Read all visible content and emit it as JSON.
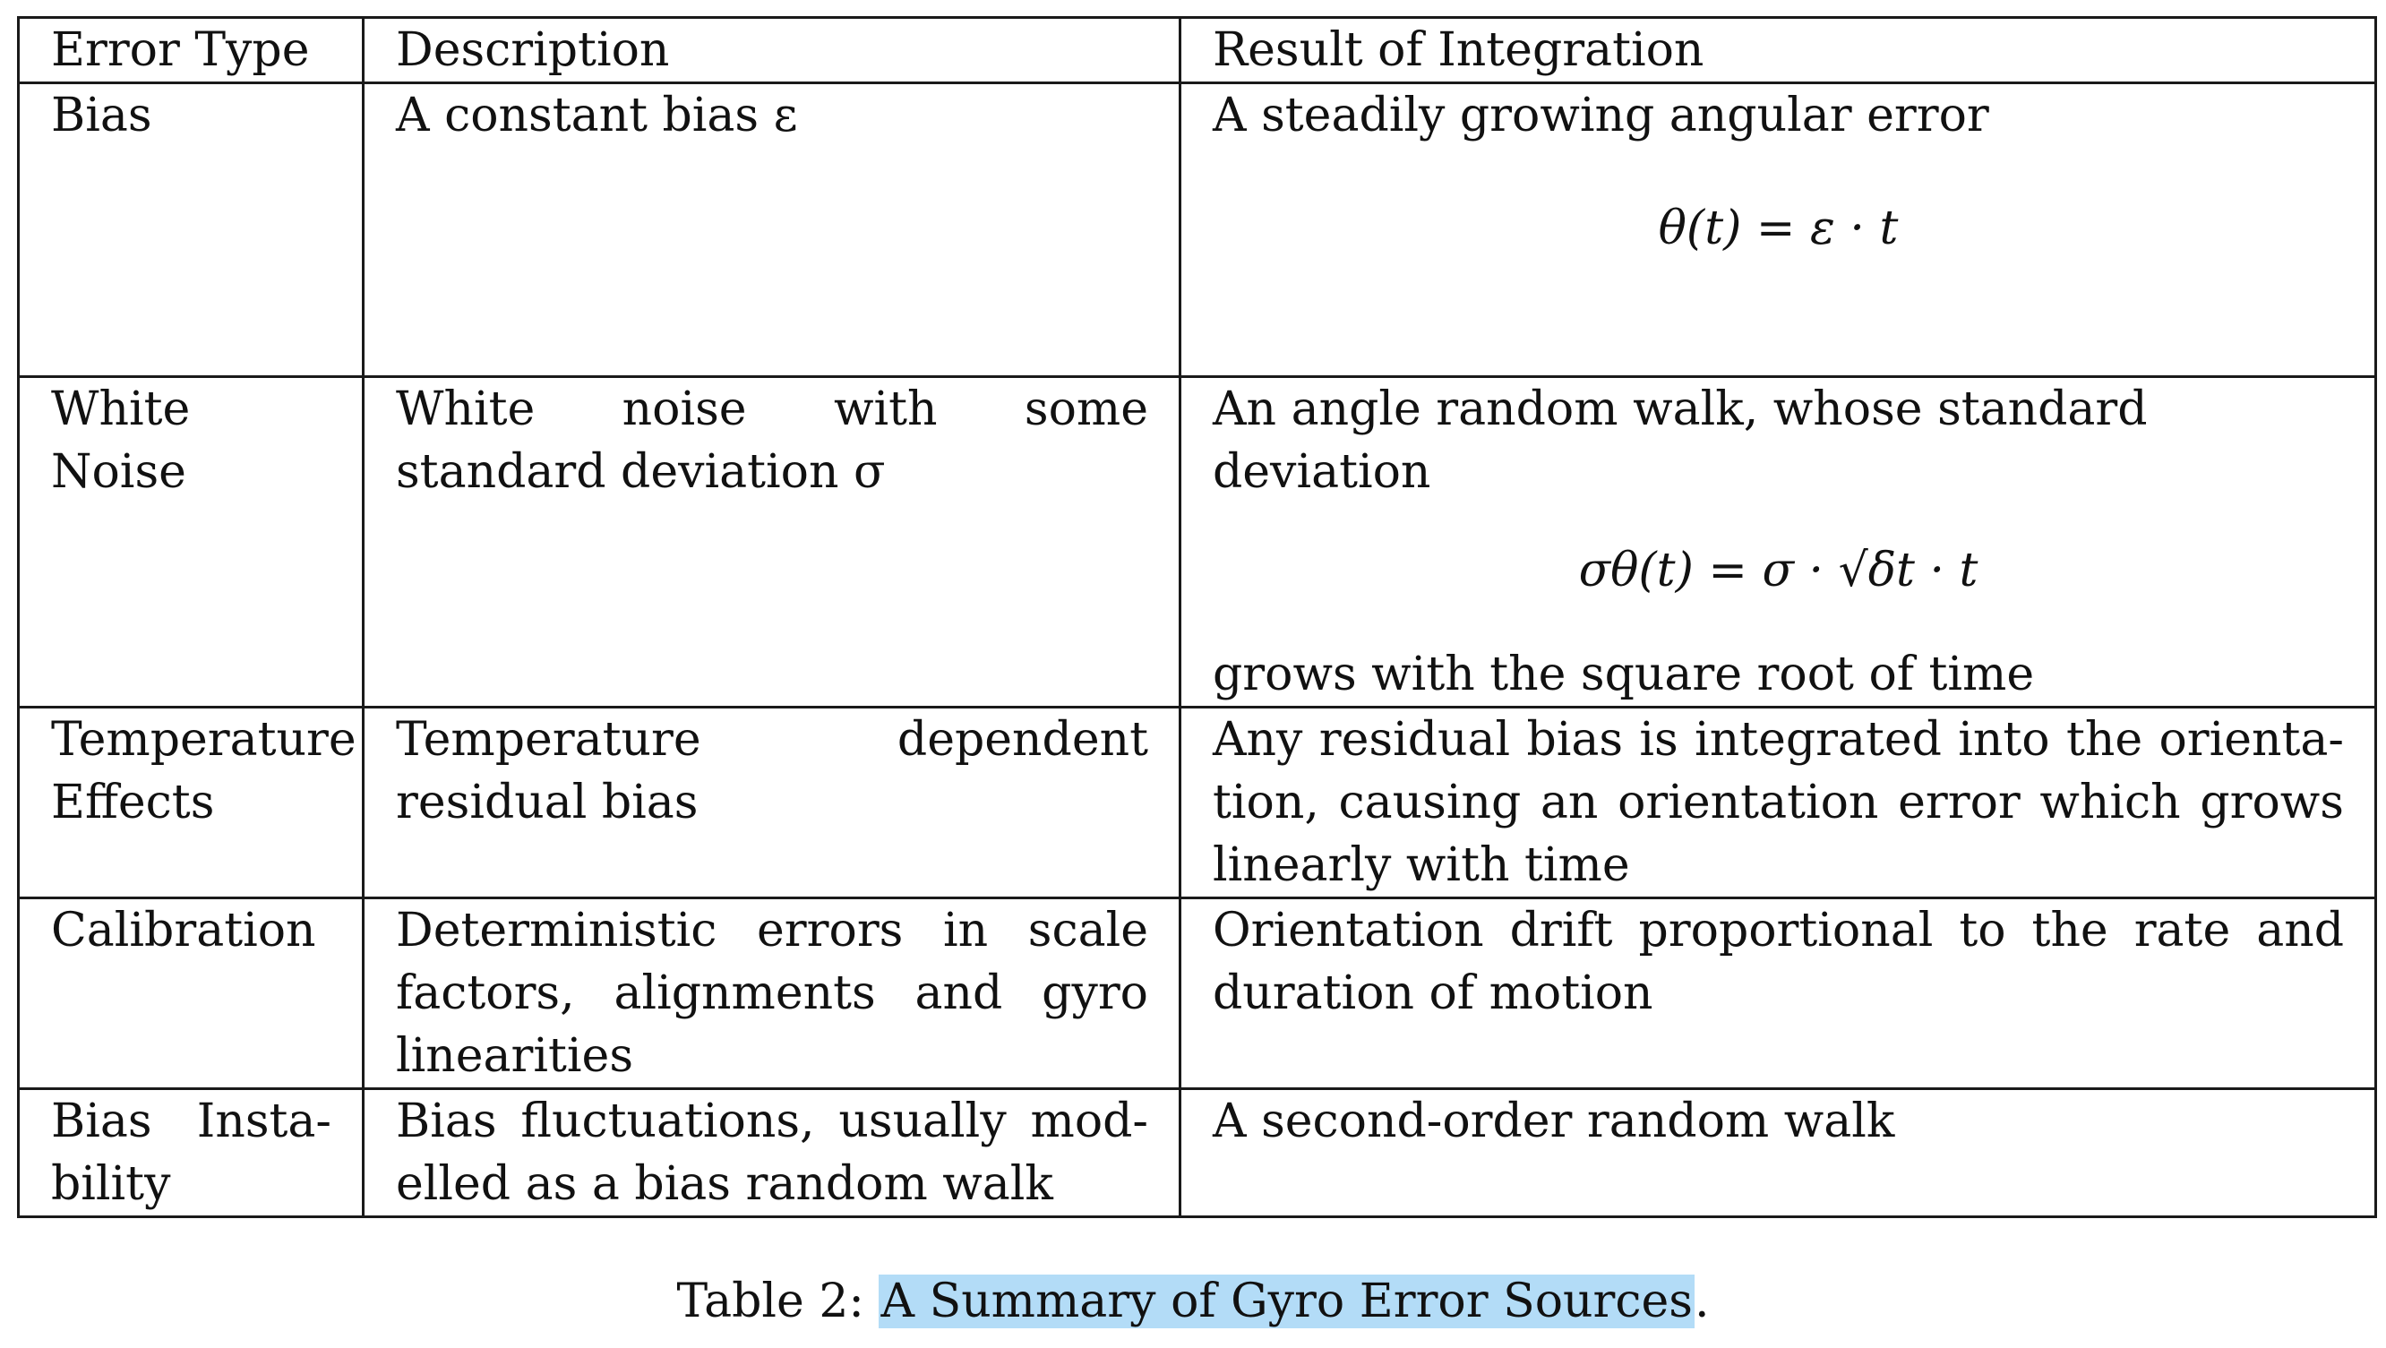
{
  "table": {
    "headers": [
      "Error Type",
      "Description",
      "Result of Integration"
    ],
    "rows": [
      {
        "type": "Bias",
        "description": "A constant bias ε",
        "result_text": "A steadily growing angular error",
        "result_equation": "θ(t) = ε · t",
        "result_after": ""
      },
      {
        "type": "White Noise",
        "description": "White noise with some standard deviation σ",
        "result_text": "An angle random walk, whose standard deviation",
        "result_equation": "σθ(t) = σ · √δt · t",
        "result_after": "grows with the square root of time"
      },
      {
        "type": "Temperature Effects",
        "description": "Temperature dependent residual bias",
        "result_text": "Any residual bias is integrated into the orienta­tion, causing an orientation error which grows lin­early with time",
        "result_equation": "",
        "result_after": ""
      },
      {
        "type": "Calibration",
        "description": "Deterministic errors in scale fac­tors, alignments and gyro linear­ities",
        "result_text": "Orientation drift proportional to the rate and du­ration of motion",
        "result_equation": "",
        "result_after": ""
      },
      {
        "type": "Bias Insta­bility",
        "description": "Bias fluctuations, usually mod­elled as a bias random walk",
        "result_text": "A second-order random walk",
        "result_equation": "",
        "result_after": ""
      }
    ]
  },
  "caption": {
    "label": "Table 2:",
    "title": "A Summary of Gyro Error Sources",
    "end": ".",
    "highlight_color": "#b3dcf7"
  }
}
